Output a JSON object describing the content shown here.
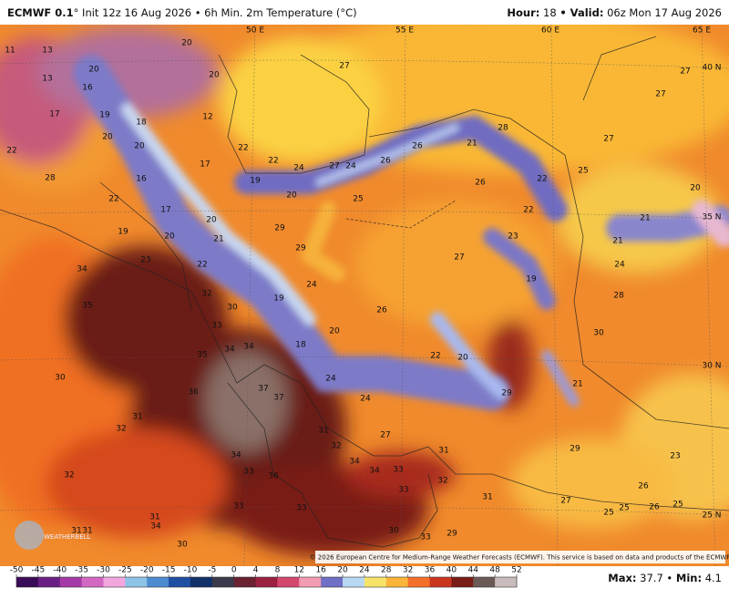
{
  "header": {
    "model": "ECMWF 0.1",
    "title": "° Init 12z 16 Aug 2026 • 6h Min. 2m Temperature (°C)",
    "hour_label": "Hour:",
    "hour": "18",
    "valid_label": "• Valid:",
    "valid": "06z Mon 17 Aug 2026"
  },
  "map": {
    "lon_labels": [
      "50 E",
      "55 E",
      "60 E",
      "65 E"
    ],
    "lat_labels": [
      "40 N",
      "35 N",
      "30 N",
      "25 N"
    ],
    "temps": [
      "11",
      "13",
      "13",
      "20",
      "16",
      "20",
      "20",
      "12",
      "17",
      "19",
      "18",
      "20",
      "20",
      "22",
      "17",
      "22",
      "22",
      "24",
      "27",
      "24",
      "26",
      "26",
      "21",
      "28",
      "27",
      "27",
      "27",
      "27",
      "28",
      "16",
      "19",
      "20",
      "25",
      "26",
      "25",
      "22",
      "22",
      "20",
      "22",
      "17",
      "20",
      "21",
      "21",
      "29",
      "29",
      "23",
      "21",
      "24",
      "19",
      "20",
      "27",
      "19",
      "22",
      "23",
      "34",
      "24",
      "28",
      "32",
      "30",
      "19",
      "26",
      "35",
      "33",
      "20",
      "18",
      "34",
      "34",
      "35",
      "22",
      "20",
      "30",
      "36",
      "37",
      "37",
      "24",
      "24",
      "29",
      "21",
      "30",
      "31",
      "32",
      "31",
      "27",
      "32",
      "34",
      "31",
      "29",
      "23",
      "34",
      "34",
      "33",
      "33",
      "36",
      "32",
      "33",
      "26",
      "32",
      "33",
      "33",
      "31",
      "27",
      "25",
      "26",
      "25",
      "25",
      "31",
      "34",
      "30",
      "33",
      "29",
      "31",
      "31",
      "30"
    ],
    "logo": "WEATHERBELL",
    "credit": "© 2026 European Centre for Medium-Range Weather Forecasts (ECMWF). This service is based on data and products of the ECMWF."
  },
  "colorbar": {
    "ticks": [
      -50,
      -45,
      -40,
      -35,
      -30,
      -25,
      -20,
      -15,
      -10,
      -5,
      0,
      4,
      8,
      12,
      16,
      20,
      24,
      28,
      32,
      36,
      40,
      44,
      48,
      52
    ],
    "colors": [
      "#3a0b57",
      "#6a1f86",
      "#a43aa6",
      "#d268c2",
      "#f3a6de",
      "#8ec3e8",
      "#4c8bd0",
      "#1f4fa3",
      "#12306a",
      "#3a3a4a",
      "#6a2130",
      "#9c2140",
      "#d4486e",
      "#f39bb2",
      "#6f6fc6",
      "#b8d8f2",
      "#f7e36a",
      "#fbb43a",
      "#f4702a",
      "#c9351f",
      "#7a1c17",
      "#6b5a55",
      "#c9bcbc"
    ]
  },
  "footer": {
    "max_label": "Max:",
    "max": "37.7",
    "sep": "•",
    "min_label": "Min:",
    "min": "4.1"
  }
}
